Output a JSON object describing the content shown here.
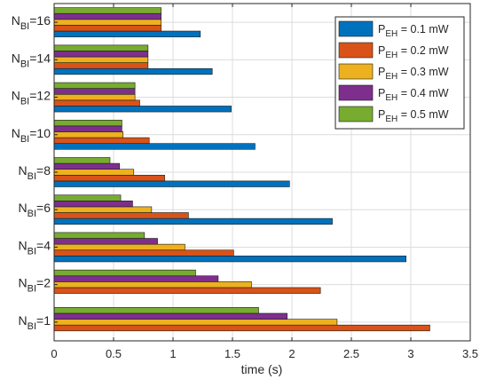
{
  "chart_data": {
    "type": "bar",
    "orientation": "horizontal",
    "xlabel": "time (s)",
    "xlim": [
      0,
      3.5
    ],
    "xticks": [
      "0",
      "0.5",
      "1",
      "1.5",
      "2",
      "2.5",
      "3",
      "3.5"
    ],
    "xtick_values": [
      0,
      0.5,
      1,
      1.5,
      2,
      2.5,
      3,
      3.5
    ],
    "grid": true,
    "legend_position": "top-right",
    "categories": [
      {
        "base": "N",
        "sub": "BI",
        "suffix": "=1"
      },
      {
        "base": "N",
        "sub": "BI",
        "suffix": "=2"
      },
      {
        "base": "N",
        "sub": "BI",
        "suffix": "=4"
      },
      {
        "base": "N",
        "sub": "BI",
        "suffix": "=6"
      },
      {
        "base": "N",
        "sub": "BI",
        "suffix": "=8"
      },
      {
        "base": "N",
        "sub": "BI",
        "suffix": "=10"
      },
      {
        "base": "N",
        "sub": "BI",
        "suffix": "=12"
      },
      {
        "base": "N",
        "sub": "BI",
        "suffix": "=14"
      },
      {
        "base": "N",
        "sub": "BI",
        "suffix": "=16"
      }
    ],
    "series": [
      {
        "name_base": "P",
        "name_sub": "EH",
        "name_suffix": " = 0.1 mW",
        "color": "#0072BD",
        "values": [
          null,
          null,
          2.96,
          2.34,
          1.98,
          1.69,
          1.49,
          1.33,
          1.23
        ]
      },
      {
        "name_base": "P",
        "name_sub": "EH",
        "name_suffix": " = 0.2 mW",
        "color": "#D95319",
        "values": [
          3.16,
          2.24,
          1.51,
          1.13,
          0.93,
          0.8,
          0.72,
          0.79,
          0.9
        ]
      },
      {
        "name_base": "P",
        "name_sub": "EH",
        "name_suffix": " = 0.3 mW",
        "color": "#EDB120",
        "values": [
          2.38,
          1.66,
          1.1,
          0.82,
          0.67,
          0.58,
          0.68,
          0.79,
          0.9
        ]
      },
      {
        "name_base": "P",
        "name_sub": "EH",
        "name_suffix": " = 0.4 mW",
        "color": "#7E2F8E",
        "values": [
          1.96,
          1.38,
          0.87,
          0.66,
          0.55,
          0.57,
          0.68,
          0.79,
          0.9
        ]
      },
      {
        "name_base": "P",
        "name_sub": "EH",
        "name_suffix": " = 0.5 mW",
        "color": "#77AC30",
        "values": [
          1.72,
          1.19,
          0.76,
          0.56,
          0.47,
          0.57,
          0.68,
          0.79,
          0.9
        ]
      }
    ]
  }
}
